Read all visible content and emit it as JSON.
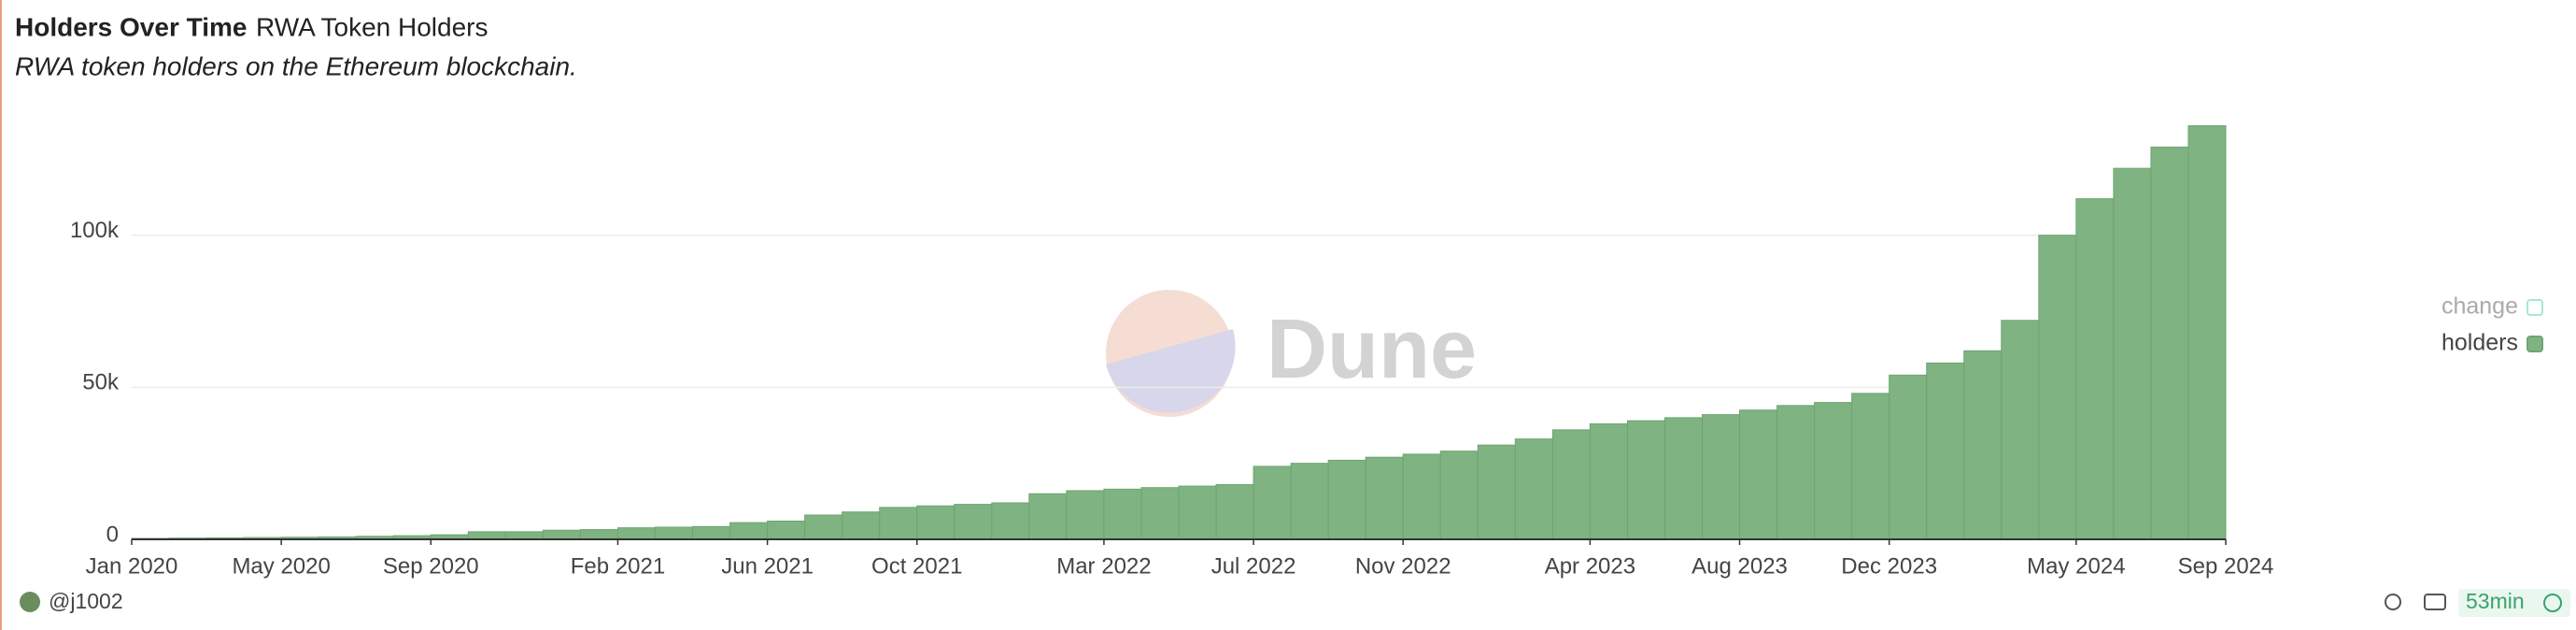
{
  "chart_data": {
    "type": "bar",
    "title": "Holders Over Time",
    "query_name": "RWA Token Holders",
    "subtitle": "RWA token holders on the Ethereum blockchain.",
    "author": "@j1002",
    "refresh": "53min",
    "watermark": "Dune",
    "x": [
      "2020-01",
      "2020-02",
      "2020-03",
      "2020-04",
      "2020-05",
      "2020-06",
      "2020-07",
      "2020-08",
      "2020-09",
      "2020-10",
      "2020-11",
      "2020-12",
      "2021-01",
      "2021-02",
      "2021-03",
      "2021-04",
      "2021-05",
      "2021-06",
      "2021-07",
      "2021-08",
      "2021-09",
      "2021-10",
      "2021-11",
      "2021-12",
      "2022-01",
      "2022-02",
      "2022-03",
      "2022-04",
      "2022-05",
      "2022-06",
      "2022-07",
      "2022-08",
      "2022-09",
      "2022-10",
      "2022-11",
      "2022-12",
      "2023-01",
      "2023-02",
      "2023-03",
      "2023-04",
      "2023-05",
      "2023-06",
      "2023-07",
      "2023-08",
      "2023-09",
      "2023-10",
      "2023-11",
      "2023-12",
      "2024-01",
      "2024-02",
      "2024-03",
      "2024-04",
      "2024-05",
      "2024-06",
      "2024-07",
      "2024-08",
      "2024-09"
    ],
    "series": [
      {
        "name": "holders",
        "color": "#7fb382",
        "values": [
          200,
          300,
          400,
          500,
          600,
          700,
          800,
          1000,
          1200,
          1500,
          2500,
          2500,
          3000,
          3200,
          3800,
          4000,
          4200,
          5500,
          6000,
          8000,
          9000,
          10500,
          11000,
          11500,
          12000,
          15000,
          16000,
          16500,
          17000,
          17500,
          18000,
          24000,
          25000,
          26000,
          27000,
          28000,
          29000,
          31000,
          33000,
          36000,
          38000,
          39000,
          40000,
          41000,
          42500,
          44000,
          45000,
          48000,
          54000,
          58000,
          62000,
          72000,
          100000,
          112000,
          122000,
          129000,
          136000
        ]
      }
    ],
    "hidden_series": [
      {
        "name": "change",
        "color": "#a8e6d6"
      }
    ],
    "xticks": [
      {
        "value": "2020-01",
        "label": "Jan 2020"
      },
      {
        "value": "2020-05",
        "label": "May 2020"
      },
      {
        "value": "2020-09",
        "label": "Sep 2020"
      },
      {
        "value": "2021-02",
        "label": "Feb 2021"
      },
      {
        "value": "2021-06",
        "label": "Jun 2021"
      },
      {
        "value": "2021-10",
        "label": "Oct 2021"
      },
      {
        "value": "2022-03",
        "label": "Mar 2022"
      },
      {
        "value": "2022-07",
        "label": "Jul 2022"
      },
      {
        "value": "2022-11",
        "label": "Nov 2022"
      },
      {
        "value": "2023-04",
        "label": "Apr 2023"
      },
      {
        "value": "2023-08",
        "label": "Aug 2023"
      },
      {
        "value": "2023-12",
        "label": "Dec 2023"
      },
      {
        "value": "2024-05",
        "label": "May 2024"
      },
      {
        "value": "2024-09",
        "label": "Sep 2024"
      }
    ],
    "ylim": [
      0,
      150000
    ],
    "yticks": [
      0,
      {
        "value": 50000,
        "label": "50k"
      },
      {
        "value": 100000,
        "label": "100k"
      }
    ],
    "grid": true,
    "legend": "right"
  }
}
